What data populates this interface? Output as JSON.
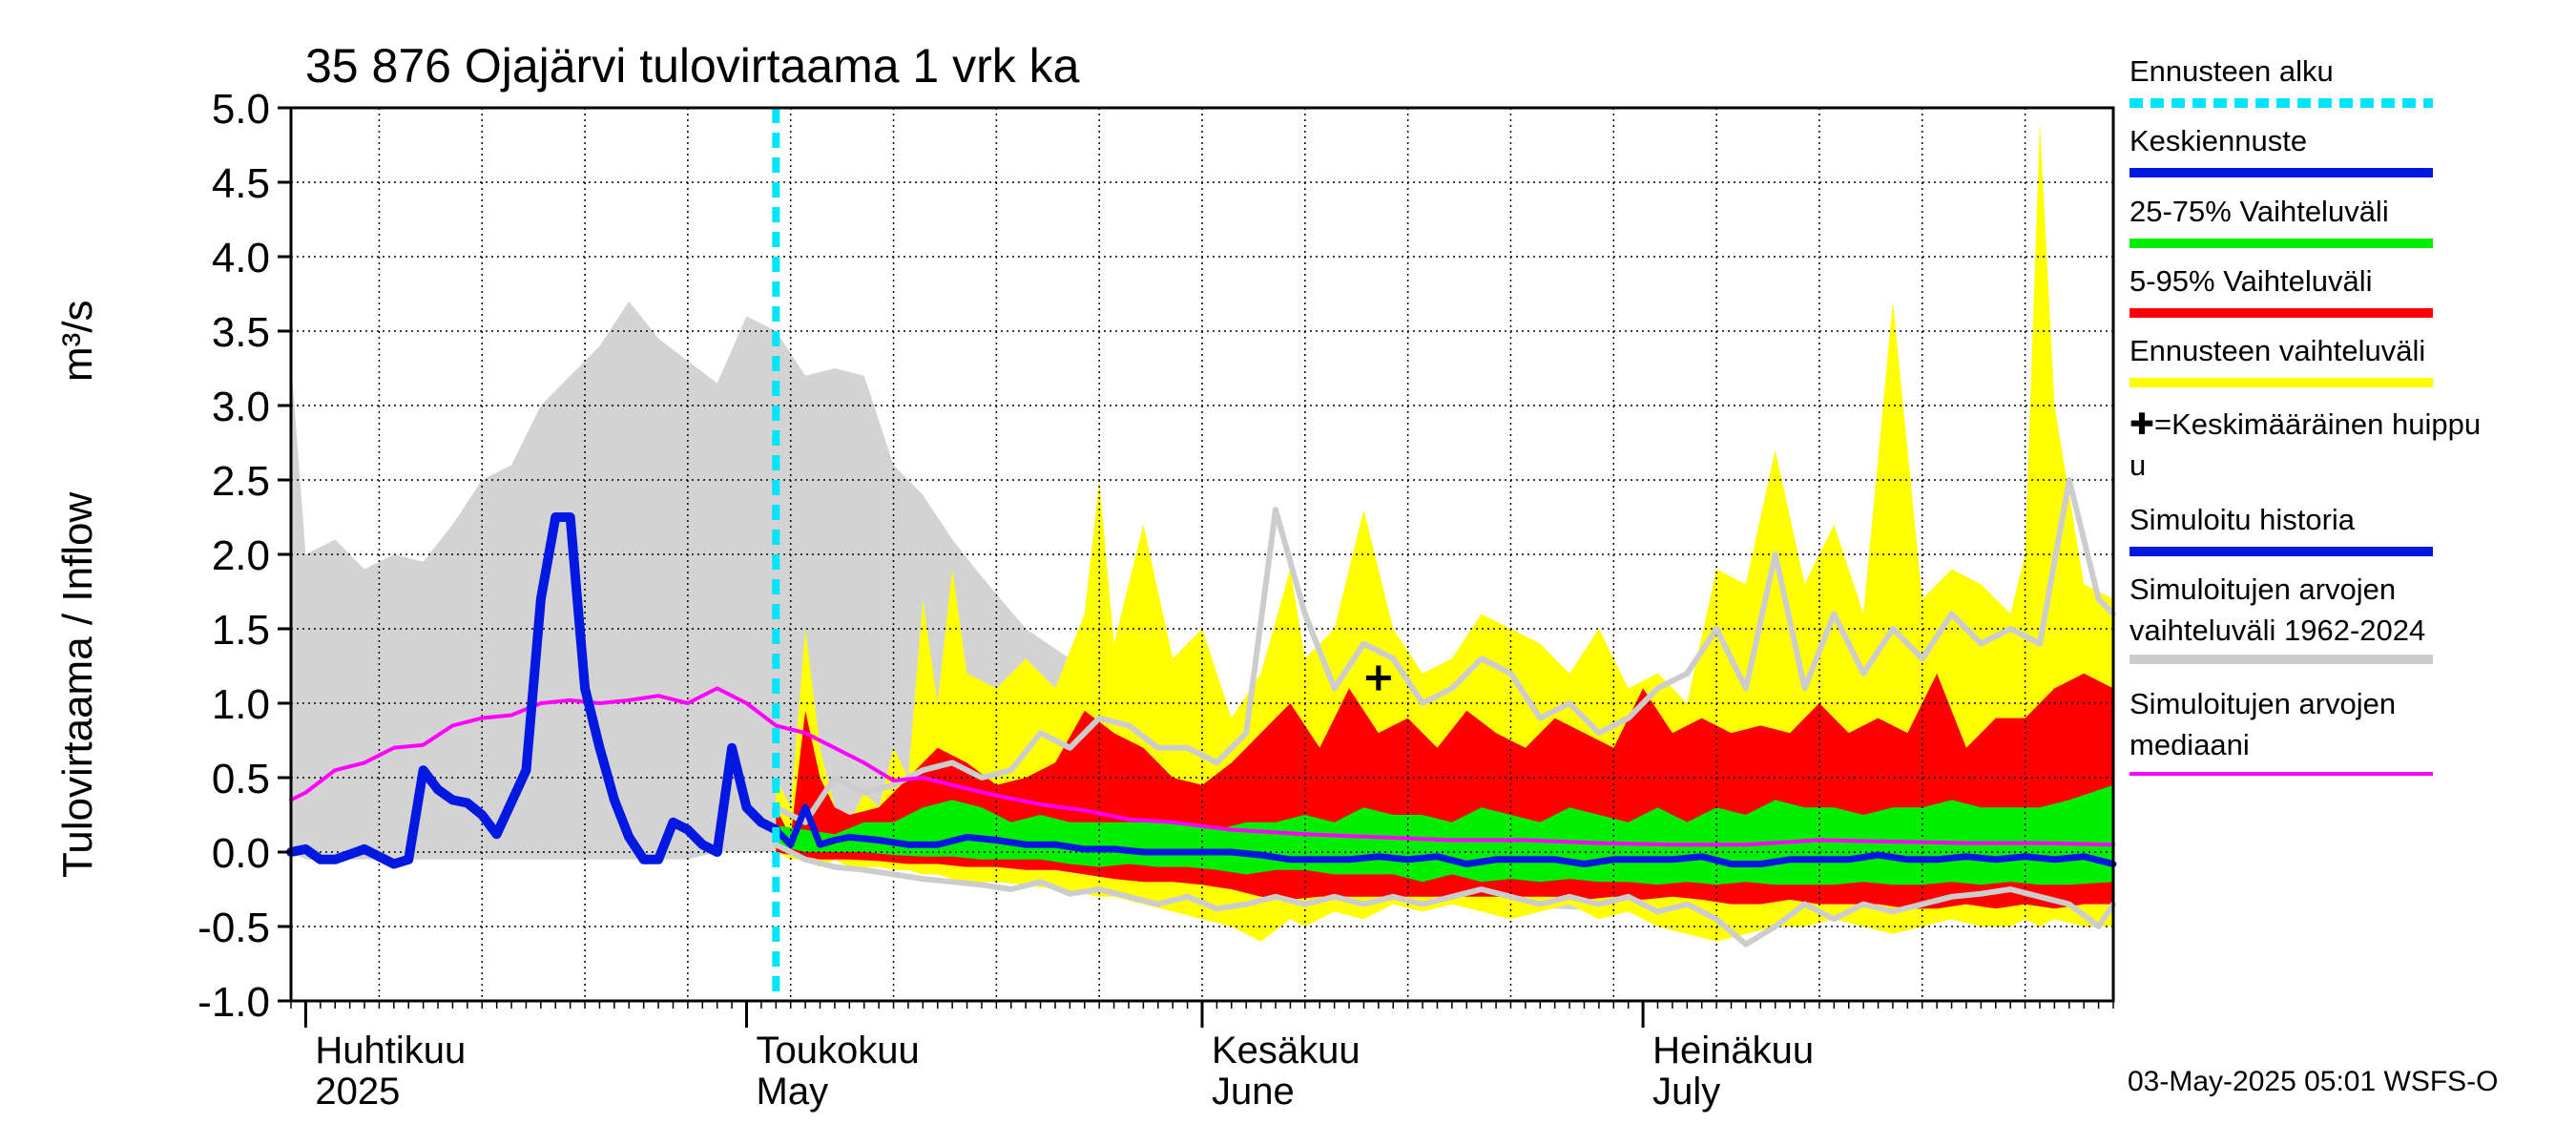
{
  "chart_data": {
    "type": "area",
    "title": "35 876 Ojajärvi tulovirtaama 1 vrk ka",
    "ylabel": "Tulovirtaama / Inflow",
    "yunit": "m³/s",
    "ylim": [
      -1.0,
      5.0
    ],
    "yticks": [
      "5.0",
      "4.5",
      "4.0",
      "3.5",
      "3.0",
      "2.5",
      "2.0",
      "1.5",
      "1.0",
      "0.5",
      "0.0",
      "-0.5",
      "-1.0"
    ],
    "ytick_values": [
      5.0,
      4.5,
      4.0,
      3.5,
      3.0,
      2.5,
      2.0,
      1.5,
      1.0,
      0.5,
      0.0,
      -0.5,
      -1.0
    ],
    "x_start": "2025-03-31",
    "x_end": "2025-08-02",
    "forecast_start": "2025-05-03",
    "grid": true,
    "legend_position": "right",
    "month_labels": [
      {
        "date": "2025-04-01",
        "line1": "Huhtikuu",
        "line2": "2025"
      },
      {
        "date": "2025-05-01",
        "line1": "Toukokuu",
        "line2": "May"
      },
      {
        "date": "2025-06-01",
        "line1": "Kesäkuu",
        "line2": "June"
      },
      {
        "date": "2025-07-01",
        "line1": "Heinäkuu",
        "line2": "July"
      }
    ],
    "hist_range": {
      "dates": [
        "2025-03-31",
        "2025-04-01",
        "2025-04-03",
        "2025-04-05",
        "2025-04-07",
        "2025-04-09",
        "2025-04-11",
        "2025-04-13",
        "2025-04-15",
        "2025-04-17",
        "2025-04-19",
        "2025-04-21",
        "2025-04-23",
        "2025-04-25",
        "2025-04-27",
        "2025-04-29",
        "2025-05-01",
        "2025-05-03",
        "2025-05-05",
        "2025-05-07",
        "2025-05-09",
        "2025-05-11",
        "2025-05-13",
        "2025-05-15",
        "2025-05-17",
        "2025-05-20",
        "2025-05-23",
        "2025-05-26",
        "2025-05-29",
        "2025-06-01",
        "2025-06-05",
        "2025-06-10",
        "2025-06-15",
        "2025-06-20",
        "2025-06-25",
        "2025-06-30",
        "2025-07-05",
        "2025-07-10",
        "2025-07-15",
        "2025-07-20",
        "2025-07-25",
        "2025-08-02"
      ],
      "upper": [
        3.3,
        2.0,
        2.1,
        1.9,
        2.0,
        1.95,
        2.2,
        2.5,
        2.6,
        3.0,
        3.2,
        3.4,
        3.7,
        3.45,
        3.3,
        3.15,
        3.6,
        3.5,
        3.2,
        3.25,
        3.2,
        2.6,
        2.4,
        2.1,
        1.85,
        1.5,
        1.3,
        1.1,
        0.95,
        0.8,
        0.7,
        0.6,
        0.55,
        0.55,
        0.5,
        0.45,
        0.45,
        0.5,
        0.45,
        0.45,
        0.4,
        0.4
      ],
      "lower": [
        0.0,
        -0.05,
        -0.05,
        -0.05,
        -0.05,
        -0.05,
        -0.05,
        -0.05,
        -0.05,
        -0.05,
        -0.05,
        -0.05,
        -0.05,
        -0.05,
        -0.05,
        0.0,
        0.0,
        0.0,
        0.0,
        -0.05,
        -0.1,
        -0.1,
        -0.1,
        -0.12,
        -0.15,
        -0.18,
        -0.2,
        -0.22,
        -0.25,
        -0.28,
        -0.3,
        -0.32,
        -0.35,
        -0.35,
        -0.38,
        -0.4,
        -0.4,
        -0.42,
        -0.45,
        -0.45,
        -0.45,
        -0.45
      ]
    },
    "forecast_range": {
      "dates": [
        "2025-05-03",
        "2025-05-04",
        "2025-05-05",
        "2025-05-06",
        "2025-05-07",
        "2025-05-08",
        "2025-05-09",
        "2025-05-10",
        "2025-05-11",
        "2025-05-12",
        "2025-05-13",
        "2025-05-14",
        "2025-05-15",
        "2025-05-16",
        "2025-05-18",
        "2025-05-20",
        "2025-05-22",
        "2025-05-24",
        "2025-05-25",
        "2025-05-26",
        "2025-05-28",
        "2025-05-30",
        "2025-06-01",
        "2025-06-03",
        "2025-06-05",
        "2025-06-07",
        "2025-06-08",
        "2025-06-10",
        "2025-06-12",
        "2025-06-14",
        "2025-06-16",
        "2025-06-18",
        "2025-06-20",
        "2025-06-22",
        "2025-06-24",
        "2025-06-26",
        "2025-06-28",
        "2025-06-30",
        "2025-07-02",
        "2025-07-04",
        "2025-07-06",
        "2025-07-08",
        "2025-07-10",
        "2025-07-12",
        "2025-07-14",
        "2025-07-16",
        "2025-07-18",
        "2025-07-20",
        "2025-07-22",
        "2025-07-24",
        "2025-07-26",
        "2025-07-27",
        "2025-07-28",
        "2025-07-29",
        "2025-07-31",
        "2025-08-02"
      ],
      "upper": [
        0.5,
        0.3,
        1.5,
        0.7,
        0.3,
        0.2,
        0.4,
        0.3,
        0.7,
        0.5,
        1.7,
        1.0,
        1.9,
        1.2,
        1.1,
        1.3,
        1.1,
        1.6,
        2.5,
        1.4,
        2.2,
        1.3,
        1.5,
        0.9,
        1.2,
        1.9,
        1.3,
        1.5,
        2.3,
        1.5,
        1.2,
        1.3,
        1.6,
        1.5,
        1.4,
        1.2,
        1.5,
        1.1,
        1.2,
        1.0,
        1.9,
        1.8,
        2.7,
        1.8,
        2.2,
        1.6,
        3.7,
        1.7,
        1.9,
        1.8,
        1.6,
        2.0,
        4.9,
        3.0,
        1.8,
        1.7
      ],
      "lower": [
        0.0,
        -0.05,
        -0.05,
        -0.1,
        -0.05,
        -0.1,
        -0.1,
        -0.1,
        -0.12,
        -0.12,
        -0.15,
        -0.15,
        -0.18,
        -0.2,
        -0.2,
        -0.22,
        -0.25,
        -0.28,
        -0.3,
        -0.3,
        -0.35,
        -0.4,
        -0.45,
        -0.5,
        -0.6,
        -0.45,
        -0.5,
        -0.4,
        -0.45,
        -0.35,
        -0.4,
        -0.35,
        -0.4,
        -0.45,
        -0.4,
        -0.35,
        -0.45,
        -0.4,
        -0.5,
        -0.55,
        -0.6,
        -0.55,
        -0.5,
        -0.5,
        -0.45,
        -0.5,
        -0.55,
        -0.5,
        -0.45,
        -0.5,
        -0.5,
        -0.45,
        -0.5,
        -0.45,
        -0.5,
        -0.5
      ]
    },
    "band_5_95": {
      "dates": [
        "2025-05-03",
        "2025-05-04",
        "2025-05-05",
        "2025-05-06",
        "2025-05-07",
        "2025-05-08",
        "2025-05-10",
        "2025-05-12",
        "2025-05-14",
        "2025-05-16",
        "2025-05-18",
        "2025-05-20",
        "2025-05-22",
        "2025-05-24",
        "2025-05-26",
        "2025-05-28",
        "2025-05-30",
        "2025-06-01",
        "2025-06-03",
        "2025-06-05",
        "2025-06-07",
        "2025-06-09",
        "2025-06-11",
        "2025-06-13",
        "2025-06-15",
        "2025-06-17",
        "2025-06-19",
        "2025-06-21",
        "2025-06-23",
        "2025-06-25",
        "2025-06-27",
        "2025-06-29",
        "2025-07-01",
        "2025-07-03",
        "2025-07-05",
        "2025-07-07",
        "2025-07-09",
        "2025-07-11",
        "2025-07-13",
        "2025-07-15",
        "2025-07-17",
        "2025-07-19",
        "2025-07-21",
        "2025-07-23",
        "2025-07-25",
        "2025-07-27",
        "2025-07-29",
        "2025-07-31",
        "2025-08-02"
      ],
      "upper": [
        0.3,
        0.1,
        0.95,
        0.5,
        0.3,
        0.25,
        0.3,
        0.5,
        0.7,
        0.6,
        0.45,
        0.5,
        0.6,
        0.95,
        0.8,
        0.7,
        0.5,
        0.45,
        0.6,
        0.8,
        1.0,
        0.7,
        1.1,
        0.8,
        0.9,
        0.7,
        0.95,
        0.8,
        0.7,
        0.9,
        0.8,
        0.7,
        1.1,
        0.8,
        0.9,
        0.8,
        0.85,
        0.8,
        1.0,
        0.8,
        0.9,
        0.8,
        1.2,
        0.7,
        0.9,
        0.9,
        1.1,
        1.2,
        1.1
      ],
      "lower": [
        0.0,
        -0.02,
        -0.03,
        -0.05,
        -0.05,
        -0.05,
        -0.06,
        -0.08,
        -0.08,
        -0.1,
        -0.1,
        -0.12,
        -0.12,
        -0.15,
        -0.18,
        -0.2,
        -0.2,
        -0.22,
        -0.25,
        -0.3,
        -0.32,
        -0.3,
        -0.3,
        -0.3,
        -0.3,
        -0.3,
        -0.3,
        -0.3,
        -0.3,
        -0.3,
        -0.32,
        -0.3,
        -0.32,
        -0.3,
        -0.32,
        -0.35,
        -0.35,
        -0.32,
        -0.35,
        -0.35,
        -0.35,
        -0.38,
        -0.38,
        -0.35,
        -0.38,
        -0.35,
        -0.38,
        -0.35,
        -0.35
      ]
    },
    "band_25_75": {
      "dates": [
        "2025-05-03",
        "2025-05-05",
        "2025-05-07",
        "2025-05-09",
        "2025-05-11",
        "2025-05-13",
        "2025-05-15",
        "2025-05-17",
        "2025-05-19",
        "2025-05-21",
        "2025-05-23",
        "2025-05-25",
        "2025-05-27",
        "2025-05-29",
        "2025-05-31",
        "2025-06-02",
        "2025-06-04",
        "2025-06-06",
        "2025-06-08",
        "2025-06-10",
        "2025-06-12",
        "2025-06-14",
        "2025-06-16",
        "2025-06-18",
        "2025-06-20",
        "2025-06-22",
        "2025-06-24",
        "2025-06-26",
        "2025-06-28",
        "2025-06-30",
        "2025-07-02",
        "2025-07-04",
        "2025-07-06",
        "2025-07-08",
        "2025-07-10",
        "2025-07-12",
        "2025-07-14",
        "2025-07-16",
        "2025-07-18",
        "2025-07-20",
        "2025-07-22",
        "2025-07-24",
        "2025-07-26",
        "2025-07-28",
        "2025-07-30",
        "2025-08-02"
      ],
      "upper": [
        0.18,
        0.15,
        0.12,
        0.2,
        0.2,
        0.3,
        0.35,
        0.3,
        0.2,
        0.25,
        0.2,
        0.2,
        0.2,
        0.2,
        0.2,
        0.15,
        0.2,
        0.2,
        0.25,
        0.2,
        0.3,
        0.25,
        0.25,
        0.2,
        0.3,
        0.25,
        0.2,
        0.3,
        0.25,
        0.2,
        0.3,
        0.2,
        0.3,
        0.25,
        0.35,
        0.3,
        0.3,
        0.25,
        0.3,
        0.3,
        0.35,
        0.3,
        0.3,
        0.3,
        0.35,
        0.45
      ],
      "lower": [
        0.05,
        0.0,
        0.0,
        0.0,
        -0.02,
        -0.03,
        -0.03,
        -0.05,
        -0.05,
        -0.05,
        -0.08,
        -0.1,
        -0.08,
        -0.1,
        -0.1,
        -0.12,
        -0.15,
        -0.12,
        -0.12,
        -0.15,
        -0.15,
        -0.15,
        -0.2,
        -0.15,
        -0.2,
        -0.18,
        -0.2,
        -0.18,
        -0.2,
        -0.2,
        -0.22,
        -0.2,
        -0.22,
        -0.2,
        -0.22,
        -0.22,
        -0.22,
        -0.2,
        -0.22,
        -0.22,
        -0.2,
        -0.22,
        -0.2,
        -0.22,
        -0.22,
        -0.2
      ]
    },
    "forecast_range_line": {
      "dates": [
        "2025-05-03",
        "2025-05-05",
        "2025-05-07",
        "2025-05-09",
        "2025-05-11",
        "2025-05-13",
        "2025-05-15",
        "2025-05-17",
        "2025-05-19",
        "2025-05-21",
        "2025-05-23",
        "2025-05-25",
        "2025-05-27",
        "2025-05-29",
        "2025-05-31",
        "2025-06-02",
        "2025-06-04",
        "2025-06-06",
        "2025-06-08",
        "2025-06-10",
        "2025-06-12",
        "2025-06-14",
        "2025-06-16",
        "2025-06-18",
        "2025-06-20",
        "2025-06-22",
        "2025-06-24",
        "2025-06-26",
        "2025-06-28",
        "2025-06-30",
        "2025-07-02",
        "2025-07-04",
        "2025-07-06",
        "2025-07-08",
        "2025-07-10",
        "2025-07-12",
        "2025-07-14",
        "2025-07-16",
        "2025-07-18",
        "2025-07-20",
        "2025-07-22",
        "2025-07-24",
        "2025-07-26",
        "2025-07-28",
        "2025-07-30",
        "2025-08-01",
        "2025-08-02"
      ],
      "upper": [
        0.3,
        0.2,
        0.5,
        0.4,
        0.45,
        0.55,
        0.6,
        0.5,
        0.55,
        0.8,
        0.7,
        0.9,
        0.85,
        0.7,
        0.7,
        0.6,
        0.8,
        2.3,
        1.6,
        1.1,
        1.4,
        1.3,
        1.0,
        1.1,
        1.3,
        1.2,
        0.9,
        1.0,
        0.8,
        0.9,
        1.1,
        1.2,
        1.5,
        1.1,
        2.0,
        1.1,
        1.6,
        1.2,
        1.5,
        1.3,
        1.6,
        1.4,
        1.5,
        1.4,
        2.5,
        1.7,
        1.6
      ],
      "lower": [
        0.05,
        -0.05,
        -0.1,
        -0.12,
        -0.15,
        -0.18,
        -0.2,
        -0.22,
        -0.25,
        -0.2,
        -0.28,
        -0.25,
        -0.3,
        -0.35,
        -0.3,
        -0.38,
        -0.35,
        -0.3,
        -0.35,
        -0.3,
        -0.35,
        -0.3,
        -0.35,
        -0.3,
        -0.25,
        -0.3,
        -0.35,
        -0.3,
        -0.35,
        -0.3,
        -0.4,
        -0.35,
        -0.45,
        -0.62,
        -0.5,
        -0.35,
        -0.45,
        -0.35,
        -0.4,
        -0.35,
        -0.3,
        -0.28,
        -0.25,
        -0.3,
        -0.35,
        -0.5,
        -0.35
      ]
    },
    "simulated_history": {
      "dates": [
        "2025-03-31",
        "2025-04-01",
        "2025-04-02",
        "2025-04-03",
        "2025-04-05",
        "2025-04-07",
        "2025-04-08",
        "2025-04-09",
        "2025-04-10",
        "2025-04-11",
        "2025-04-12",
        "2025-04-13",
        "2025-04-14",
        "2025-04-16",
        "2025-04-17",
        "2025-04-18",
        "2025-04-19",
        "2025-04-20",
        "2025-04-21",
        "2025-04-22",
        "2025-04-23",
        "2025-04-24",
        "2025-04-25",
        "2025-04-26",
        "2025-04-27",
        "2025-04-28",
        "2025-04-29",
        "2025-04-30",
        "2025-05-01",
        "2025-05-02",
        "2025-05-03"
      ],
      "values": [
        0.0,
        0.02,
        -0.05,
        -0.05,
        0.02,
        -0.08,
        -0.05,
        0.55,
        0.42,
        0.35,
        0.33,
        0.25,
        0.12,
        0.55,
        1.7,
        2.25,
        2.25,
        1.1,
        0.7,
        0.35,
        0.1,
        -0.05,
        -0.05,
        0.2,
        0.15,
        0.05,
        0.0,
        0.7,
        0.3,
        0.2,
        0.15
      ]
    },
    "mean_forecast": {
      "dates": [
        "2025-05-03",
        "2025-05-04",
        "2025-05-05",
        "2025-05-06",
        "2025-05-07",
        "2025-05-08",
        "2025-05-10",
        "2025-05-12",
        "2025-05-14",
        "2025-05-16",
        "2025-05-18",
        "2025-05-20",
        "2025-05-22",
        "2025-05-24",
        "2025-05-26",
        "2025-05-28",
        "2025-05-30",
        "2025-06-01",
        "2025-06-03",
        "2025-06-05",
        "2025-06-07",
        "2025-06-09",
        "2025-06-11",
        "2025-06-13",
        "2025-06-15",
        "2025-06-17",
        "2025-06-19",
        "2025-06-21",
        "2025-06-23",
        "2025-06-25",
        "2025-06-27",
        "2025-06-29",
        "2025-07-01",
        "2025-07-03",
        "2025-07-05",
        "2025-07-07",
        "2025-07-09",
        "2025-07-11",
        "2025-07-13",
        "2025-07-15",
        "2025-07-17",
        "2025-07-19",
        "2025-07-21",
        "2025-07-23",
        "2025-07-25",
        "2025-07-27",
        "2025-07-29",
        "2025-07-31",
        "2025-08-02"
      ],
      "values": [
        0.15,
        0.05,
        0.3,
        0.05,
        0.08,
        0.1,
        0.08,
        0.05,
        0.05,
        0.1,
        0.08,
        0.05,
        0.05,
        0.02,
        0.02,
        0.0,
        0.0,
        0.0,
        0.0,
        -0.02,
        -0.05,
        -0.05,
        -0.05,
        -0.03,
        -0.05,
        -0.03,
        -0.08,
        -0.05,
        -0.05,
        -0.05,
        -0.08,
        -0.05,
        -0.05,
        -0.05,
        -0.03,
        -0.08,
        -0.08,
        -0.05,
        -0.05,
        -0.05,
        -0.02,
        -0.05,
        -0.05,
        -0.03,
        -0.05,
        -0.03,
        -0.05,
        -0.03,
        -0.08
      ]
    },
    "historical_median": {
      "dates": [
        "2025-03-31",
        "2025-04-01",
        "2025-04-03",
        "2025-04-05",
        "2025-04-07",
        "2025-04-09",
        "2025-04-11",
        "2025-04-13",
        "2025-04-15",
        "2025-04-17",
        "2025-04-19",
        "2025-04-21",
        "2025-04-23",
        "2025-04-25",
        "2025-04-27",
        "2025-04-29",
        "2025-05-01",
        "2025-05-03",
        "2025-05-05",
        "2025-05-07",
        "2025-05-09",
        "2025-05-11",
        "2025-05-13",
        "2025-05-15",
        "2025-05-18",
        "2025-05-21",
        "2025-05-24",
        "2025-05-27",
        "2025-05-30",
        "2025-06-03",
        "2025-06-08",
        "2025-06-13",
        "2025-06-18",
        "2025-06-23",
        "2025-06-28",
        "2025-07-03",
        "2025-07-08",
        "2025-07-13",
        "2025-07-18",
        "2025-07-23",
        "2025-07-28",
        "2025-08-02"
      ],
      "values": [
        0.35,
        0.4,
        0.55,
        0.6,
        0.7,
        0.72,
        0.85,
        0.9,
        0.92,
        1.0,
        1.02,
        1.0,
        1.02,
        1.05,
        1.0,
        1.1,
        1.0,
        0.85,
        0.8,
        0.7,
        0.6,
        0.48,
        0.5,
        0.45,
        0.38,
        0.32,
        0.28,
        0.22,
        0.2,
        0.15,
        0.12,
        0.1,
        0.08,
        0.08,
        0.06,
        0.05,
        0.05,
        0.08,
        0.07,
        0.06,
        0.06,
        0.05
      ]
    },
    "average_peak": {
      "date": "2025-06-13",
      "value": 1.17
    },
    "legend": [
      {
        "label": "Ennusteen alku",
        "color": "#00e5ff",
        "style": "dashed"
      },
      {
        "label": "Keskiennuste",
        "color": "#0018e0",
        "style": "line"
      },
      {
        "label": "25-75% Vaihteluväli",
        "color": "#00ee00",
        "style": "line"
      },
      {
        "label": "5-95% Vaihteluväli",
        "color": "#ff0000",
        "style": "line"
      },
      {
        "label": "Ennusteen vaihteluväli",
        "color": "#ffff00",
        "style": "line"
      },
      {
        "label": "✚=Keskimääräinen huippu",
        "label_line2": "u",
        "color": "#000000",
        "style": "none"
      },
      {
        "label": "Simuloitu historia",
        "color": "#0018e0",
        "style": "line"
      },
      {
        "label": "Simuloitujen arvojen",
        "label_line2": "vaihteluväli 1962-2024",
        "color": "#cccccc",
        "style": "line"
      },
      {
        "label": "Simuloitujen arvojen",
        "label_line2": "mediaani",
        "color": "#ff00ff",
        "style": "thin"
      }
    ],
    "footer": "03-May-2025 05:01 WSFS-O"
  }
}
